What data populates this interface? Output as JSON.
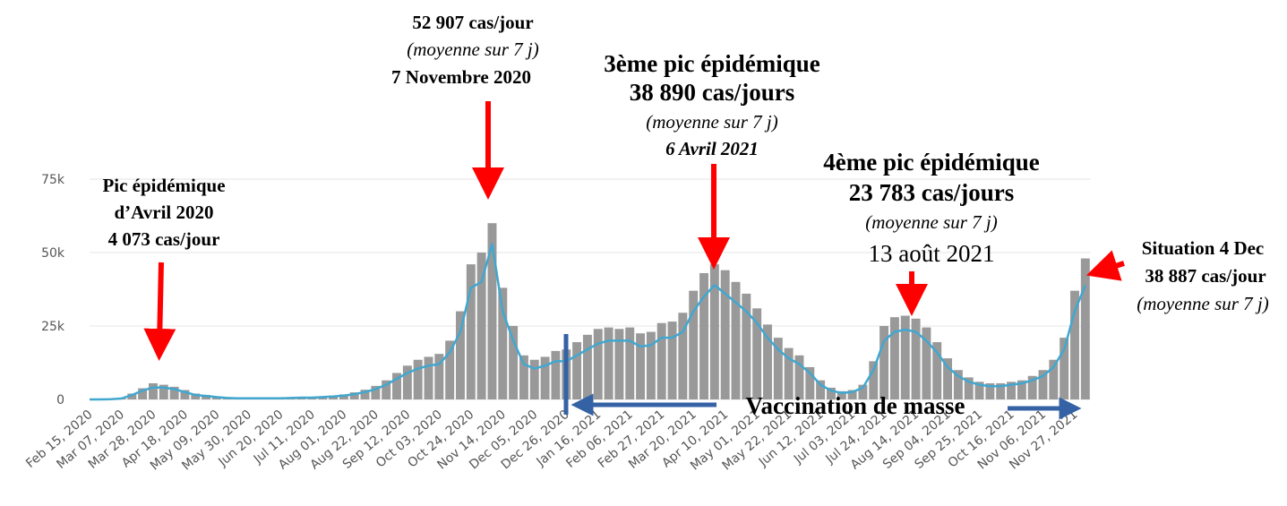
{
  "chart_data": {
    "type": "bar",
    "categories": [
      "Feb 15, 2020",
      null,
      null,
      "Mar 07, 2020",
      null,
      null,
      "Mar 28, 2020",
      null,
      null,
      "Apr 18, 2020",
      null,
      null,
      "May 09, 2020",
      null,
      null,
      "May 30, 2020",
      null,
      null,
      "Jun 20, 2020",
      null,
      null,
      "Jul 11, 2020",
      null,
      null,
      "Aug 01, 2020",
      null,
      null,
      "Aug 22, 2020",
      null,
      null,
      "Sep 12, 2020",
      null,
      null,
      "Oct 03, 2020",
      null,
      null,
      "Oct 24, 2020",
      null,
      null,
      "Nov 14, 2020",
      null,
      null,
      "Dec 05, 2020",
      null,
      null,
      "Dec 26, 2020",
      null,
      null,
      "Jan 16, 2021",
      null,
      null,
      "Feb 06, 2021",
      null,
      null,
      "Feb 27, 2021",
      null,
      null,
      "Mar 20, 2021",
      null,
      null,
      "Apr 10, 2021",
      null,
      null,
      "May 01, 2021",
      null,
      null,
      "May 22, 2021",
      null,
      null,
      "Jun 12, 2021",
      null,
      null,
      "Jul 03, 2021",
      null,
      null,
      "Jul 24, 2021",
      null,
      null,
      "Aug 14, 2021",
      null,
      null,
      "Sep 04, 2021",
      null,
      null,
      "Sep 25, 2021",
      null,
      null,
      "Oct 16, 2021",
      null,
      null,
      "Nov 06, 2021",
      null,
      null,
      "Nov 27, 2021",
      null
    ],
    "series": [
      {
        "color": "#999999",
        "values": [
          0,
          0,
          150,
          500,
          2000,
          3800,
          5500,
          5000,
          4300,
          3200,
          2000,
          1500,
          1000,
          700,
          600,
          500,
          500,
          500,
          500,
          700,
          800,
          800,
          1000,
          1300,
          1700,
          2400,
          3300,
          4600,
          6500,
          9000,
          11500,
          13500,
          14500,
          15500,
          20000,
          30000,
          46000,
          50000,
          60000,
          38000,
          25000,
          15000,
          13500,
          14500,
          16500,
          17000,
          19500,
          22000,
          24000,
          24500,
          24000,
          24500,
          22500,
          23000,
          26000,
          26500,
          29500,
          37000,
          43000,
          46000,
          44000,
          40000,
          36000,
          31000,
          25500,
          21000,
          17500,
          15000,
          11000,
          6500,
          4000,
          2800,
          3200,
          5000,
          13000,
          25000,
          28000,
          28500,
          27500,
          24500,
          19500,
          14000,
          10000,
          7500,
          6000,
          5500,
          5500,
          6000,
          6500,
          8000,
          10000,
          13500,
          21000,
          37000,
          48000
        ]
      },
      {
        "type": "line",
        "color": "#41a7cf",
        "values": [
          0,
          0,
          100,
          300,
          1500,
          3000,
          4073,
          4000,
          3500,
          2500,
          1500,
          1200,
          800,
          500,
          400,
          400,
          400,
          400,
          400,
          500,
          600,
          600,
          800,
          1000,
          1300,
          1800,
          2500,
          3500,
          5000,
          7000,
          9000,
          10500,
          11500,
          12000,
          16000,
          23000,
          38000,
          40000,
          52907,
          30000,
          20000,
          12000,
          10500,
          11500,
          13000,
          13000,
          15000,
          17000,
          19000,
          20000,
          20000,
          20000,
          18000,
          18500,
          21000,
          21000,
          23000,
          30000,
          35000,
          38890,
          36000,
          33000,
          30000,
          26000,
          21000,
          17000,
          14000,
          12000,
          9000,
          5000,
          3000,
          2200,
          2500,
          4000,
          10000,
          20000,
          23000,
          23783,
          23000,
          20000,
          16000,
          11000,
          8000,
          6000,
          5000,
          4500,
          4500,
          5000,
          5500,
          6500,
          8000,
          11000,
          17000,
          30000,
          38887
        ]
      }
    ],
    "ylim": [
      0,
      75000
    ],
    "yticks": [
      0,
      {
        "value": 25000,
        "label": "25k"
      },
      {
        "value": 50000,
        "label": "50k"
      },
      {
        "value": 75000,
        "label": "75k"
      }
    ],
    "grid": true,
    "annotations": [
      [
        "Pic épidémique",
        "d’Avril 2020",
        "4 073 cas/jour"
      ],
      [
        "52 907 cas/jour",
        "(moyenne sur 7 j)",
        "7 Novembre 2020"
      ],
      [
        "3ème pic épidémique",
        "38 890 cas/jours",
        "(moyenne sur 7 j)",
        "6 Avril 2021"
      ],
      [
        "4ème pic épidémique",
        "23 783 cas/jours",
        "(moyenne sur 7 j)",
        "13 août 2021"
      ],
      [
        "Situation 4 Dec",
        "38 887 cas/jour",
        "(moyenne sur 7 j)"
      ],
      [
        "Vaccination de masse"
      ]
    ]
  }
}
